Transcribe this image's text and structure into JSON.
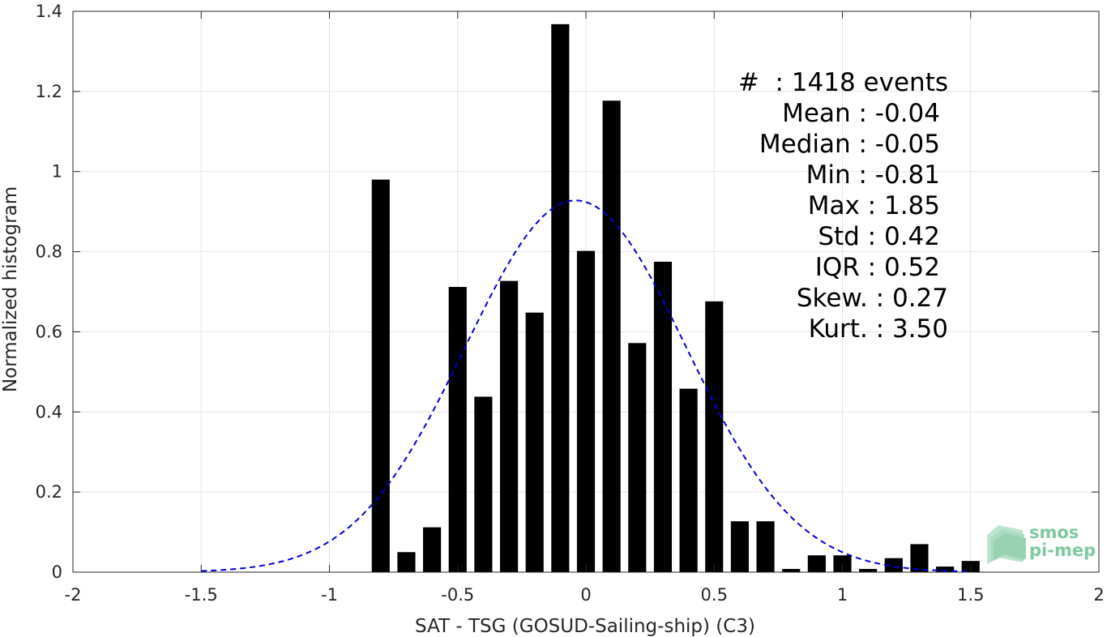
{
  "chart_data": {
    "type": "bar",
    "xlabel": "SAT - TSG (GOSUD-Sailing-ship) (C3)",
    "ylabel": "Normalized histogram",
    "xlim": [
      -2,
      2
    ],
    "ylim": [
      0,
      1.4
    ],
    "xticks": [
      -2,
      -1.5,
      -1,
      -0.5,
      0,
      0.5,
      1,
      1.5,
      2
    ],
    "xtick_labels": [
      "-2",
      "-1.5",
      "-1",
      "-0.5",
      "0",
      "0.5",
      "1",
      "1.5",
      "2"
    ],
    "yticks": [
      0,
      0.2,
      0.4,
      0.6,
      0.8,
      1,
      1.2,
      1.4
    ],
    "ytick_labels": [
      "0",
      "0.2",
      "0.4",
      "0.6",
      "0.8",
      "1",
      "1.2",
      "1.4"
    ],
    "grid": true,
    "bar_color": "#000000",
    "bar_width": 0.07,
    "bars": [
      {
        "x": -0.8,
        "y": 0.98
      },
      {
        "x": -0.7,
        "y": 0.05
      },
      {
        "x": -0.6,
        "y": 0.112
      },
      {
        "x": -0.5,
        "y": 0.712
      },
      {
        "x": -0.4,
        "y": 0.438
      },
      {
        "x": -0.3,
        "y": 0.727
      },
      {
        "x": -0.2,
        "y": 0.648
      },
      {
        "x": -0.1,
        "y": 1.368
      },
      {
        "x": 0.0,
        "y": 0.802
      },
      {
        "x": 0.1,
        "y": 1.177
      },
      {
        "x": 0.2,
        "y": 0.572
      },
      {
        "x": 0.3,
        "y": 0.775
      },
      {
        "x": 0.4,
        "y": 0.458
      },
      {
        "x": 0.5,
        "y": 0.676
      },
      {
        "x": 0.6,
        "y": 0.127
      },
      {
        "x": 0.7,
        "y": 0.127
      },
      {
        "x": 0.8,
        "y": 0.008
      },
      {
        "x": 0.9,
        "y": 0.042
      },
      {
        "x": 1.0,
        "y": 0.042
      },
      {
        "x": 1.1,
        "y": 0.008
      },
      {
        "x": 1.2,
        "y": 0.035
      },
      {
        "x": 1.3,
        "y": 0.07
      },
      {
        "x": 1.4,
        "y": 0.014
      },
      {
        "x": 1.5,
        "y": 0.028
      }
    ],
    "fit_curve": {
      "style": "dashed",
      "color": "#0000dd",
      "x_range": [
        -1.5,
        1.5
      ],
      "mean": -0.04,
      "std": 0.43,
      "peak": 0.928
    },
    "annotation": {
      "lines": [
        "#  : 1418 events",
        "Mean : -0.04",
        "Median : -0.05",
        "Min : -0.81",
        "Max : 1.85",
        "Std : 0.42",
        "IQR : 0.52",
        "Skew. : 0.27",
        "Kurt. : 3.50"
      ]
    },
    "logo": {
      "lines": [
        "smos",
        "pi-mep"
      ],
      "color": "#7fc8a0"
    }
  }
}
